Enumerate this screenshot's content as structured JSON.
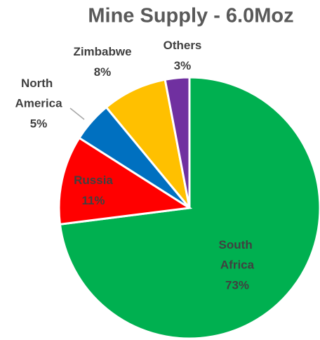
{
  "chart_data": {
    "type": "pie",
    "title": "Mine Supply - 6.0Moz",
    "categories": [
      "South Africa",
      "Russia",
      "North America",
      "Zimbabwe",
      "Others"
    ],
    "values": [
      73,
      11,
      5,
      8,
      3
    ],
    "value_labels": [
      "73%",
      "11%",
      "5%",
      "8%",
      "3%"
    ],
    "colors": [
      "#00b050",
      "#ff0000",
      "#0070c0",
      "#ffc000",
      "#7030a0"
    ]
  }
}
